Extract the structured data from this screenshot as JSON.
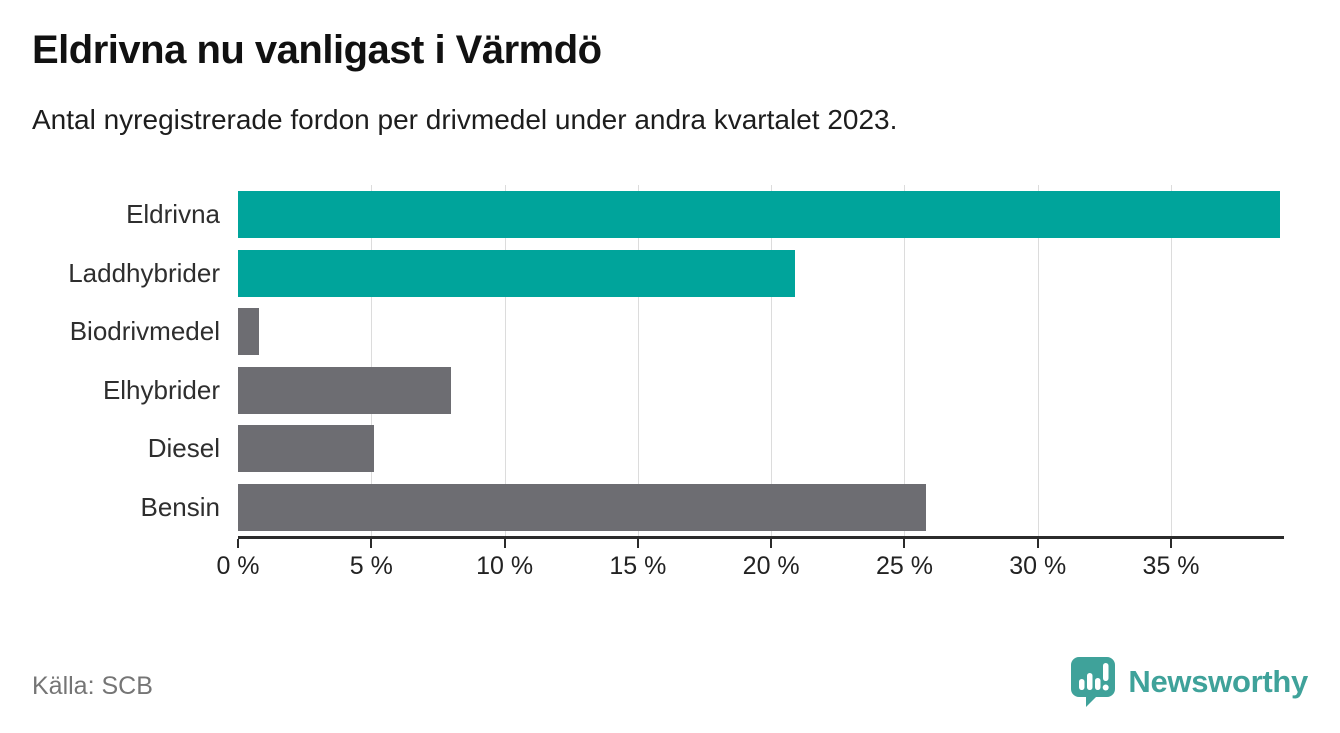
{
  "header": {
    "title": "Eldrivna nu vanligast i Värmdö",
    "subtitle": "Antal nyregistrerade fordon per drivmedel under andra kvartalet 2023."
  },
  "footer": {
    "source": "Källa: SCB",
    "brand_name": "Newsworthy"
  },
  "colors": {
    "teal": "#00a49b",
    "gray": "#6d6d72",
    "brand": "#3fa29a",
    "grid": "#dcdcdc",
    "axis": "#2b2b2b"
  },
  "chart_data": {
    "type": "bar",
    "orientation": "horizontal",
    "title": "Eldrivna nu vanligast i Värmdö",
    "subtitle": "Antal nyregistrerade fordon per drivmedel under andra kvartalet 2023.",
    "categories": [
      "Eldrivna",
      "Laddhybrider",
      "Biodrivmedel",
      "Elhybrider",
      "Diesel",
      "Bensin"
    ],
    "values": [
      39.1,
      20.9,
      0.8,
      8.0,
      5.1,
      25.8
    ],
    "bar_color_keys": [
      "teal",
      "teal",
      "gray",
      "gray",
      "gray",
      "gray"
    ],
    "xlabel": "",
    "ylabel": "",
    "xlim": [
      0,
      39.2
    ],
    "x_tick_values": [
      0,
      5,
      10,
      15,
      20,
      25,
      30,
      35
    ],
    "x_tick_labels": [
      "0 %",
      "5 %",
      "10 %",
      "15 %",
      "20 %",
      "25 %",
      "30 %",
      "35 %"
    ],
    "grid": true,
    "legend": false
  }
}
